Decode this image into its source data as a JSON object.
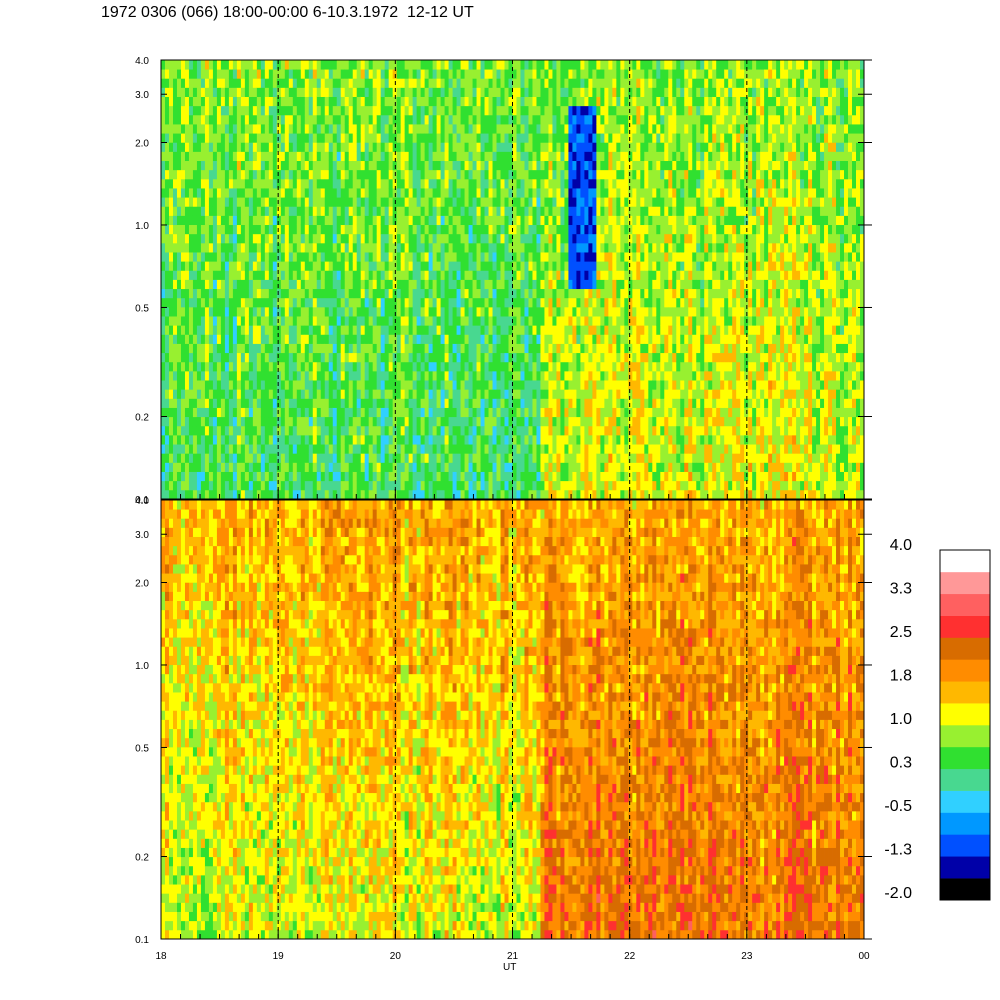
{
  "title": "1972 0306 (066) 18:00-00:00 6-10.3.1972  12-12 UT",
  "chart_data": [
    {
      "type": "heatmap",
      "panel": "upper",
      "xlabel": "UT",
      "x_ticks": [
        "18",
        "19",
        "20",
        "21",
        "22",
        "23",
        "00"
      ],
      "x_range": [
        18,
        24
      ],
      "y_scale": "log",
      "y_range": [
        0.1,
        4.0
      ],
      "y_ticks": [
        "0.1",
        "0.2",
        "0.5",
        "1.0",
        "2.0",
        "3.0",
        "4.0"
      ],
      "y_tick_values": [
        0.1,
        0.2,
        0.5,
        1.0,
        2.0,
        3.0,
        4.0
      ],
      "dashed_hours": [
        19,
        20,
        21,
        22,
        23
      ],
      "dominant_levels": [
        {
          "ut_start": 18.0,
          "ut_end": 21.25,
          "low_freq_level": 0.3,
          "high_freq_level": 0.7
        },
        {
          "ut_start": 21.25,
          "ut_end": 24.0,
          "low_freq_level": 1.1,
          "high_freq_level": 0.7
        }
      ],
      "features": [
        {
          "ut": 21.6,
          "freq_range": [
            0.6,
            2.8
          ],
          "level": -1.1
        }
      ]
    },
    {
      "type": "heatmap",
      "panel": "lower",
      "xlabel": "UT",
      "x_ticks": [
        "18",
        "19",
        "20",
        "21",
        "22",
        "23",
        "00"
      ],
      "x_range": [
        18,
        24
      ],
      "y_scale": "log",
      "y_range": [
        0.1,
        4.0
      ],
      "y_ticks": [
        "0.1",
        "0.2",
        "0.5",
        "1.0",
        "2.0",
        "3.0",
        "4.0"
      ],
      "y_tick_values": [
        0.1,
        0.2,
        0.5,
        1.0,
        2.0,
        3.0,
        4.0
      ],
      "dashed_hours": [
        19,
        20,
        21,
        22,
        23
      ],
      "dominant_levels": [
        {
          "ut_start": 18.0,
          "ut_end": 21.25,
          "low_freq_level": 1.05,
          "high_freq_level": 1.7
        },
        {
          "ut_start": 21.25,
          "ut_end": 24.0,
          "low_freq_level": 2.2,
          "high_freq_level": 1.7
        }
      ]
    }
  ],
  "colorbar": {
    "labels": [
      "4.0",
      "3.3",
      "2.5",
      "1.8",
      "1.0",
      "0.3",
      "-0.5",
      "-1.3",
      "-2.0"
    ],
    "colors": [
      "#000000",
      "#0000a8",
      "#0050ff",
      "#0098ff",
      "#30d0ff",
      "#48d890",
      "#30e030",
      "#98f030",
      "#ffff00",
      "#ffb800",
      "#ff8c00",
      "#d86c00",
      "#ff3030",
      "#ff6060",
      "#ff9898",
      "#ffffff"
    ],
    "min": -2.0,
    "max": 4.0
  }
}
